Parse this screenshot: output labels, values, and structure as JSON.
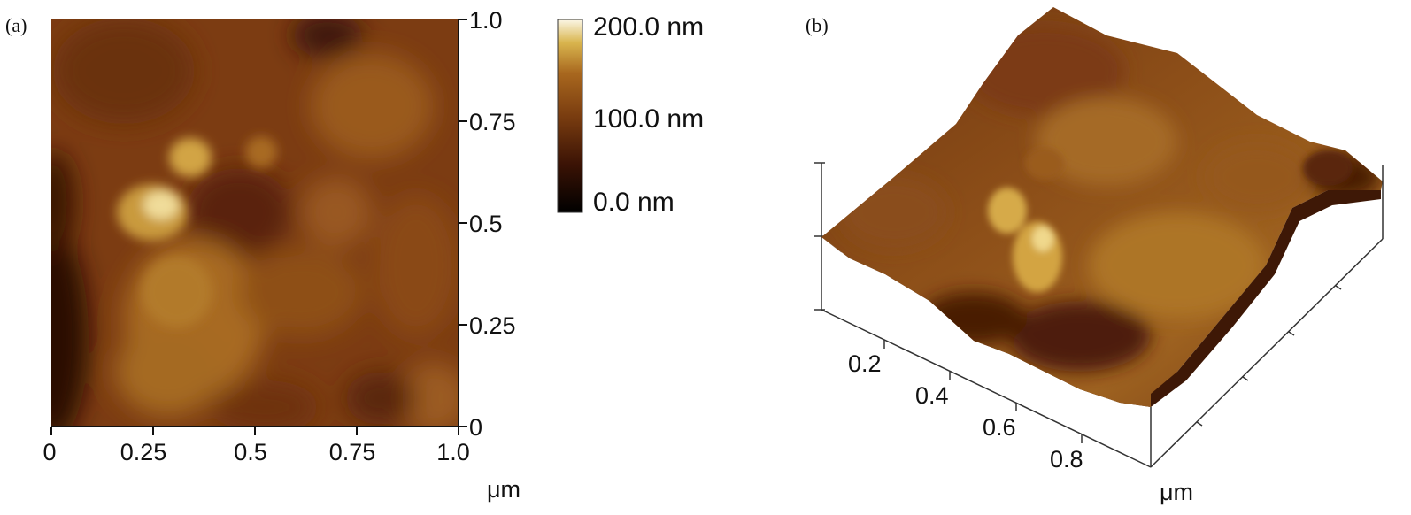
{
  "panel_a": {
    "label": "(a)",
    "x_ticks": [
      "0",
      "0.25",
      "0.5",
      "0.75",
      "1.0"
    ],
    "y_ticks": [
      "1.0",
      "0.75",
      "0.5",
      "0.25",
      "0"
    ],
    "unit": "μm"
  },
  "colorbar": {
    "labels": [
      "200.0 nm",
      "100.0 nm",
      "0.0 nm"
    ],
    "colors": [
      "#000000",
      "#4a1a08",
      "#7a3d10",
      "#a8671e",
      "#d9b54e",
      "#fbf6e6"
    ]
  },
  "panel_b": {
    "label": "(b)",
    "axis_ticks": [
      "0.2",
      "0.4",
      "0.6",
      "0.8"
    ],
    "unit": "μm"
  }
}
